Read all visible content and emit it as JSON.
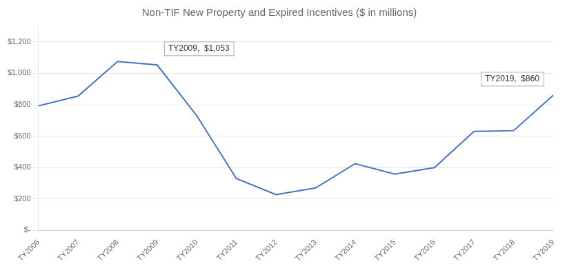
{
  "chart_data": {
    "type": "line",
    "title": "Non-TIF New Property and Expired Incentives ($ in millions)",
    "categories": [
      "TY2006",
      "TY2007",
      "TY2008",
      "TY2009",
      "TY2010",
      "TY2011",
      "TY2012",
      "TY2013",
      "TY2014",
      "TY2015",
      "TY2016",
      "TY2017",
      "TY2018",
      "TY2019"
    ],
    "values": [
      793,
      855,
      1075,
      1053,
      730,
      330,
      228,
      270,
      425,
      358,
      400,
      630,
      635,
      860
    ],
    "color": "#4472C4",
    "ylim": [
      0,
      1300
    ],
    "yticks": [
      {
        "value": 0,
        "label": "$-"
      },
      {
        "value": 200,
        "label": "$200"
      },
      {
        "value": 400,
        "label": "$400"
      },
      {
        "value": 600,
        "label": "$600"
      },
      {
        "value": 800,
        "label": "$800"
      },
      {
        "value": 1000,
        "label": "$1,000"
      },
      {
        "value": 1200,
        "label": "$1,200"
      }
    ],
    "grid": true,
    "annotations": [
      {
        "text": "TY2009,  $1,053",
        "x": "TY2009",
        "y": 1053
      },
      {
        "text": "TY2019,  $860",
        "x": "TY2019",
        "y": 860
      }
    ]
  }
}
